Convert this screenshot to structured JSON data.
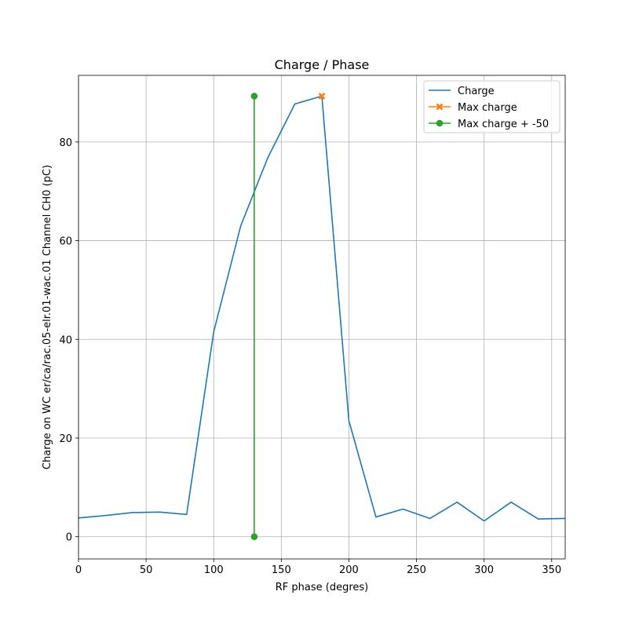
{
  "chart_data": {
    "type": "line",
    "title": "Charge / Phase",
    "xlabel": "RF phase (degres)",
    "ylabel": "Charge on WC er/ca/rac.05-elr.01-wac.01 Channel CH0 (pC)",
    "xlim": [
      0,
      360
    ],
    "ylim": [
      -4.5,
      93.5
    ],
    "xticks": [
      0,
      50,
      100,
      150,
      200,
      250,
      300,
      350
    ],
    "yticks": [
      0,
      20,
      40,
      60,
      80
    ],
    "grid": true,
    "legend_position": "top-right",
    "series": [
      {
        "name": "Charge",
        "color": "#1f77b4",
        "marker": "none",
        "x": [
          0,
          20,
          40,
          60,
          80,
          100,
          120,
          140,
          160,
          180,
          200,
          220,
          240,
          260,
          280,
          300,
          320,
          340,
          360
        ],
        "y": [
          3.8,
          4.3,
          4.9,
          5.0,
          4.5,
          41.5,
          63.0,
          76.8,
          87.7,
          89.3,
          23.5,
          4.0,
          5.6,
          3.7,
          7.0,
          3.2,
          7.0,
          3.6,
          3.7
        ]
      },
      {
        "name": "Max charge",
        "color": "#ff7f0e",
        "marker": "x",
        "x": [
          180
        ],
        "y": [
          89.3
        ]
      },
      {
        "name": "Max charge + -50",
        "color": "#2ca02c",
        "marker": "circle",
        "x": [
          130,
          130
        ],
        "y": [
          0,
          89.3
        ]
      }
    ]
  }
}
